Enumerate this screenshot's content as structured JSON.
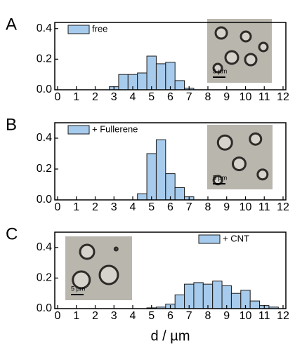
{
  "chart_data": [
    {
      "type": "histogram",
      "panel": "A",
      "bins": [
        2.75,
        3.25,
        3.75,
        4.25,
        4.75,
        5.25,
        5.75,
        6.25,
        6.75,
        7.25
      ],
      "series": [
        {
          "name": "free",
          "color": "#a7cbec",
          "values": [
            0.02,
            0.1,
            0.1,
            0.11,
            0.22,
            0.17,
            0.18,
            0.06,
            0.01
          ]
        }
      ],
      "xlim": [
        -0.15,
        12.15
      ],
      "ylim": [
        0,
        0.44
      ],
      "xticks": [
        0,
        1,
        2,
        3,
        4,
        5,
        6,
        7,
        8,
        9,
        10,
        11,
        12
      ],
      "yticks": [
        {
          "value": 0,
          "label": "0.0"
        },
        0.2,
        0.4
      ],
      "legend": "upper left",
      "inset_scale": "5 µm"
    },
    {
      "type": "histogram",
      "panel": "B",
      "bins": [
        4.25,
        4.75,
        5.25,
        5.75,
        6.25,
        6.75,
        7.25
      ],
      "series": [
        {
          "name": "+ Fullerene",
          "color": "#a7cbec",
          "values": [
            0.04,
            0.3,
            0.39,
            0.17,
            0.08,
            0.02
          ]
        }
      ],
      "xlim": [
        -0.15,
        12.15
      ],
      "ylim": [
        0,
        0.5
      ],
      "xticks": [
        0,
        1,
        2,
        3,
        4,
        5,
        6,
        7,
        8,
        9,
        10,
        11,
        12
      ],
      "yticks": [
        {
          "value": 0,
          "label": "0.0"
        },
        0.2,
        0.4
      ],
      "legend": "upper left",
      "inset_scale": "5 µm"
    },
    {
      "type": "histogram",
      "panel": "C",
      "bins": [
        4.75,
        5.25,
        5.75,
        6.25,
        6.75,
        7.25,
        7.75,
        8.25,
        8.75,
        9.25,
        9.75,
        10.25,
        10.75,
        11.25,
        11.75
      ],
      "series": [
        {
          "name": "+ CNT",
          "color": "#a7cbec",
          "values": [
            0.005,
            0.01,
            0.03,
            0.09,
            0.16,
            0.17,
            0.16,
            0.18,
            0.15,
            0.1,
            0.12,
            0.05,
            0.02,
            0.01
          ]
        }
      ],
      "xlim": [
        -0.15,
        12.15
      ],
      "ylim": [
        0,
        0.5
      ],
      "xticks": [
        0,
        1,
        2,
        3,
        4,
        5,
        6,
        7,
        8,
        9,
        10,
        11,
        12
      ],
      "yticks": [
        {
          "value": 0,
          "label": "0.0"
        },
        0.2,
        0.4
      ],
      "legend": "upper right",
      "inset_scale": "5 µm",
      "xlabel": "d / µm"
    }
  ]
}
